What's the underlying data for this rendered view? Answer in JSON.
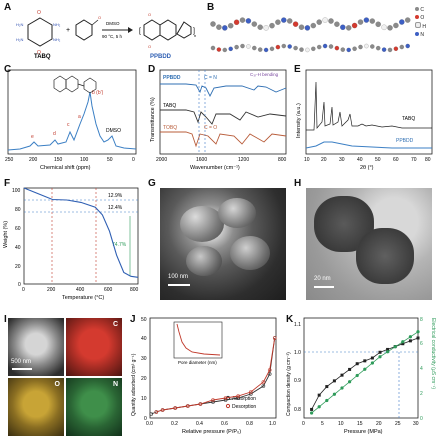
{
  "panels": {
    "A": {
      "label": "A",
      "reactant": "TABQ",
      "reagent": "",
      "conditions_solvent": "DMSO",
      "conditions_temp": "90 °C, 5 h",
      "product": "PPBDD"
    },
    "B": {
      "label": "B",
      "legend": [
        "C",
        "O",
        "H",
        "N"
      ],
      "legend_colors": [
        "#8a8a8a",
        "#d43a2f",
        "#f0f0f0",
        "#3d5fc4"
      ]
    },
    "C": {
      "label": "C",
      "peak_labels": [
        "e",
        "d",
        "c",
        "a",
        "b (b')",
        "DMSO"
      ],
      "xlabel": "Chemical shift (ppm)",
      "xticks": [
        "250",
        "200",
        "150",
        "100",
        "50",
        "0"
      ]
    },
    "D": {
      "label": "D",
      "series_labels": [
        "PPBDD",
        "TABQ",
        "TOBQ"
      ],
      "annotations": [
        "C = N",
        "C₃ᵣ-H\nbending",
        "C = O"
      ],
      "ylabel": "Transmittance (%)",
      "xlabel": "Wavenumber (cm⁻¹)",
      "xticks": [
        "2000",
        "1600",
        "1200",
        "800"
      ]
    },
    "E": {
      "label": "E",
      "series_labels": [
        "TABQ",
        "PPBDD"
      ],
      "ylabel": "Intensity (a.u.)",
      "xlabel": "2θ (°)",
      "xticks": [
        "10",
        "20",
        "30",
        "40",
        "50",
        "60",
        "70",
        "80"
      ]
    },
    "F": {
      "label": "F",
      "ylabel": "Weight (%)",
      "xlabel": "Temperature (°C)",
      "yticks": [
        "100",
        "80",
        "60",
        "40",
        "20",
        "0"
      ],
      "xticks": [
        "0",
        "200",
        "400",
        "600",
        "800"
      ],
      "annotations": [
        "12.9%",
        "12.4%",
        "74.7%"
      ]
    },
    "G": {
      "label": "G",
      "scale": "100 nm"
    },
    "H": {
      "label": "H",
      "scale": "20 nm"
    },
    "I": {
      "label": "I",
      "scale": "500 nm",
      "elements": [
        "C",
        "O",
        "N"
      ]
    },
    "J": {
      "label": "J",
      "ylabel": "Quantity adsorbed (cm³ g⁻¹)",
      "xlabel": "Relative pressure (P/P₀)",
      "legend": [
        "Absorption",
        "Desorption"
      ],
      "inset_xlabel": "Pore diameter (nm)",
      "xticks": [
        "0.0",
        "0.2",
        "0.4",
        "0.6",
        "0.8",
        "1.0"
      ],
      "yticks": [
        "0",
        "10",
        "20",
        "30",
        "40",
        "50"
      ]
    },
    "K": {
      "label": "K",
      "ylabel_left": "Compaction density (g cm⁻³)",
      "ylabel_right": "Electrical conductivity (μS cm⁻¹)",
      "xlabel": "Pressure (MPa)",
      "xticks": [
        "0",
        "5",
        "10",
        "15",
        "20",
        "25",
        "30"
      ],
      "yticks_left": [
        "0.8",
        "0.9",
        "1.0",
        "1.1"
      ],
      "yticks_right": [
        "0",
        "2",
        "4",
        "6",
        "8"
      ]
    }
  },
  "chart_data": [
    {
      "type": "line",
      "panel": "C",
      "xlabel": "Chemical shift (ppm)",
      "x_reversed": true,
      "xlim": [
        250,
        0
      ],
      "series": [
        {
          "values": []
        }
      ]
    },
    {
      "type": "line",
      "panel": "F",
      "xlabel": "Temperature (°C)",
      "ylabel": "Weight (%)",
      "xlim": [
        0,
        800
      ],
      "ylim": [
        0,
        100
      ],
      "x": [
        0,
        100,
        200,
        300,
        400,
        500,
        550,
        600,
        650,
        700,
        750,
        800
      ],
      "series": [
        {
          "values": [
            100,
            94,
            88,
            87.5,
            85,
            80,
            72,
            55,
            30,
            12,
            8,
            7
          ]
        }
      ]
    },
    {
      "type": "line",
      "panel": "J",
      "xlim": [
        0,
        1
      ],
      "ylim": [
        0,
        50
      ],
      "series": [
        {
          "name": "Absorption",
          "x": [
            0.01,
            0.05,
            0.1,
            0.2,
            0.3,
            0.4,
            0.5,
            0.6,
            0.7,
            0.8,
            0.9,
            0.95,
            0.99
          ],
          "values": [
            2,
            3,
            4,
            5,
            6,
            7,
            8,
            9,
            10,
            12,
            16,
            22,
            40
          ]
        },
        {
          "name": "Desorption",
          "x": [
            0.99,
            0.95,
            0.9,
            0.8,
            0.7,
            0.6,
            0.5,
            0.4,
            0.3,
            0.2,
            0.1,
            0.05
          ],
          "values": [
            40,
            24,
            18,
            13,
            11,
            10,
            9,
            7,
            6,
            5,
            4,
            3
          ]
        }
      ]
    },
    {
      "type": "scatter",
      "panel": "K",
      "xlim": [
        0,
        30
      ],
      "series": [
        {
          "name": "Compaction density",
          "axis": "left",
          "ylim": [
            0.75,
            1.1
          ],
          "x": [
            2,
            4,
            6,
            8,
            10,
            12,
            14,
            16,
            18,
            20,
            22,
            24,
            26,
            28,
            30
          ],
          "values": [
            0.78,
            0.83,
            0.86,
            0.88,
            0.9,
            0.92,
            0.94,
            0.95,
            0.96,
            0.98,
            0.99,
            1.0,
            1.01,
            1.02,
            1.03
          ]
        },
        {
          "name": "Electrical conductivity",
          "axis": "right",
          "ylim": [
            0,
            8
          ],
          "x": [
            2,
            4,
            6,
            8,
            10,
            12,
            14,
            16,
            18,
            20,
            22,
            24,
            26,
            28,
            30
          ],
          "values": [
            0.4,
            0.9,
            1.4,
            1.9,
            2.4,
            2.9,
            3.4,
            3.9,
            4.4,
            4.9,
            5.3,
            5.7,
            6.1,
            6.5,
            6.9
          ]
        }
      ]
    }
  ]
}
